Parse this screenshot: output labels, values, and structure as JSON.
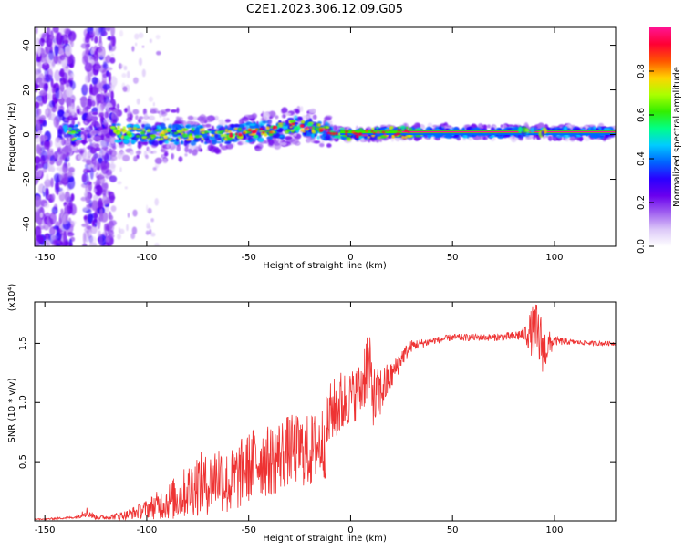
{
  "title": "C2E1.2023.306.12.09.G05",
  "colors": {
    "snr_line": "#ee3333",
    "colormap": [
      "#ffffff",
      "#dcc8f8",
      "#a060f0",
      "#6a00ee",
      "#2a00ff",
      "#0066ff",
      "#00ccff",
      "#00ff88",
      "#33ee00",
      "#aaff00",
      "#ffd400",
      "#ff5500",
      "#ff0033",
      "#ff1493"
    ]
  },
  "chart_data": [
    {
      "type": "heatmap",
      "xlabel": "Height of straight line (km)",
      "ylabel": "Frequency (Hz)",
      "xlim": [
        -155,
        130
      ],
      "ylim": [
        -50,
        48
      ],
      "xticks": [
        -150,
        -100,
        -50,
        0,
        50,
        100
      ],
      "yticks": [
        -40,
        -20,
        0,
        20,
        40
      ],
      "colorbar": {
        "label": "Normalized spectral amplitude",
        "range": [
          0,
          1
        ],
        "ticks": [
          "0.0",
          "0.2",
          "0.4",
          "0.6",
          "0.8"
        ],
        "tick_values": [
          0,
          0.2,
          0.4,
          0.6,
          0.8
        ]
      },
      "description_series": {
        "name": "",
        "ridge_frequency_hz": [
          {
            "x": -137,
            "y": 0
          },
          {
            "x": -115,
            "y": 1
          },
          {
            "x": -100,
            "y": 0
          },
          {
            "x": -80,
            "y": 0
          },
          {
            "x": -60,
            "y": 0
          },
          {
            "x": -40,
            "y": 2
          },
          {
            "x": -25,
            "y": 4
          },
          {
            "x": -10,
            "y": 1
          },
          {
            "x": 0,
            "y": 0
          },
          {
            "x": 20,
            "y": 1
          },
          {
            "x": 50,
            "y": 1
          },
          {
            "x": 100,
            "y": 1
          },
          {
            "x": 130,
            "y": 1
          }
        ]
      }
    },
    {
      "type": "line",
      "xlabel": "Height of straight line (km)",
      "ylabel": "SNR (10 * v/v)",
      "y_multiplier": "(x10⁴)",
      "xlim": [
        -155,
        130
      ],
      "ylim": [
        0,
        1.85
      ],
      "xticks": [
        -150,
        -100,
        -50,
        0,
        50,
        100
      ],
      "yticks": [
        "0.5",
        "1.0",
        "1.5"
      ],
      "ytick_values": [
        0.5,
        1.0,
        1.5
      ],
      "x": [
        -155,
        -145,
        -135,
        -130,
        -125,
        -120,
        -110,
        -100,
        -95,
        -90,
        -85,
        -80,
        -75,
        -70,
        -65,
        -60,
        -55,
        -50,
        -45,
        -40,
        -35,
        -30,
        -25,
        -20,
        -15,
        -12,
        -10,
        -5,
        0,
        5,
        8,
        10,
        12,
        15,
        20,
        25,
        30,
        40,
        50,
        60,
        70,
        80,
        85,
        90,
        92,
        95,
        100,
        110,
        120,
        130
      ],
      "y": [
        0.01,
        0.02,
        0.03,
        0.08,
        0.03,
        0.03,
        0.05,
        0.1,
        0.13,
        0.16,
        0.2,
        0.25,
        0.32,
        0.3,
        0.4,
        0.3,
        0.38,
        0.45,
        0.52,
        0.5,
        0.55,
        0.6,
        0.6,
        0.58,
        0.65,
        0.7,
        0.92,
        0.98,
        1.05,
        1.1,
        1.35,
        1.2,
        1.0,
        1.1,
        1.22,
        1.38,
        1.48,
        1.52,
        1.55,
        1.55,
        1.55,
        1.56,
        1.58,
        1.6,
        1.55,
        1.45,
        1.52,
        1.51,
        1.5,
        1.5
      ],
      "amplitude": [
        0.005,
        0.008,
        0.01,
        0.05,
        0.02,
        0.02,
        0.04,
        0.08,
        0.12,
        0.15,
        0.2,
        0.22,
        0.28,
        0.25,
        0.3,
        0.28,
        0.3,
        0.3,
        0.32,
        0.3,
        0.32,
        0.3,
        0.3,
        0.32,
        0.3,
        0.35,
        0.25,
        0.3,
        0.22,
        0.25,
        0.35,
        0.3,
        0.28,
        0.22,
        0.12,
        0.08,
        0.05,
        0.03,
        0.03,
        0.03,
        0.03,
        0.04,
        0.06,
        0.25,
        0.3,
        0.2,
        0.04,
        0.02,
        0.02,
        0.02
      ]
    }
  ]
}
